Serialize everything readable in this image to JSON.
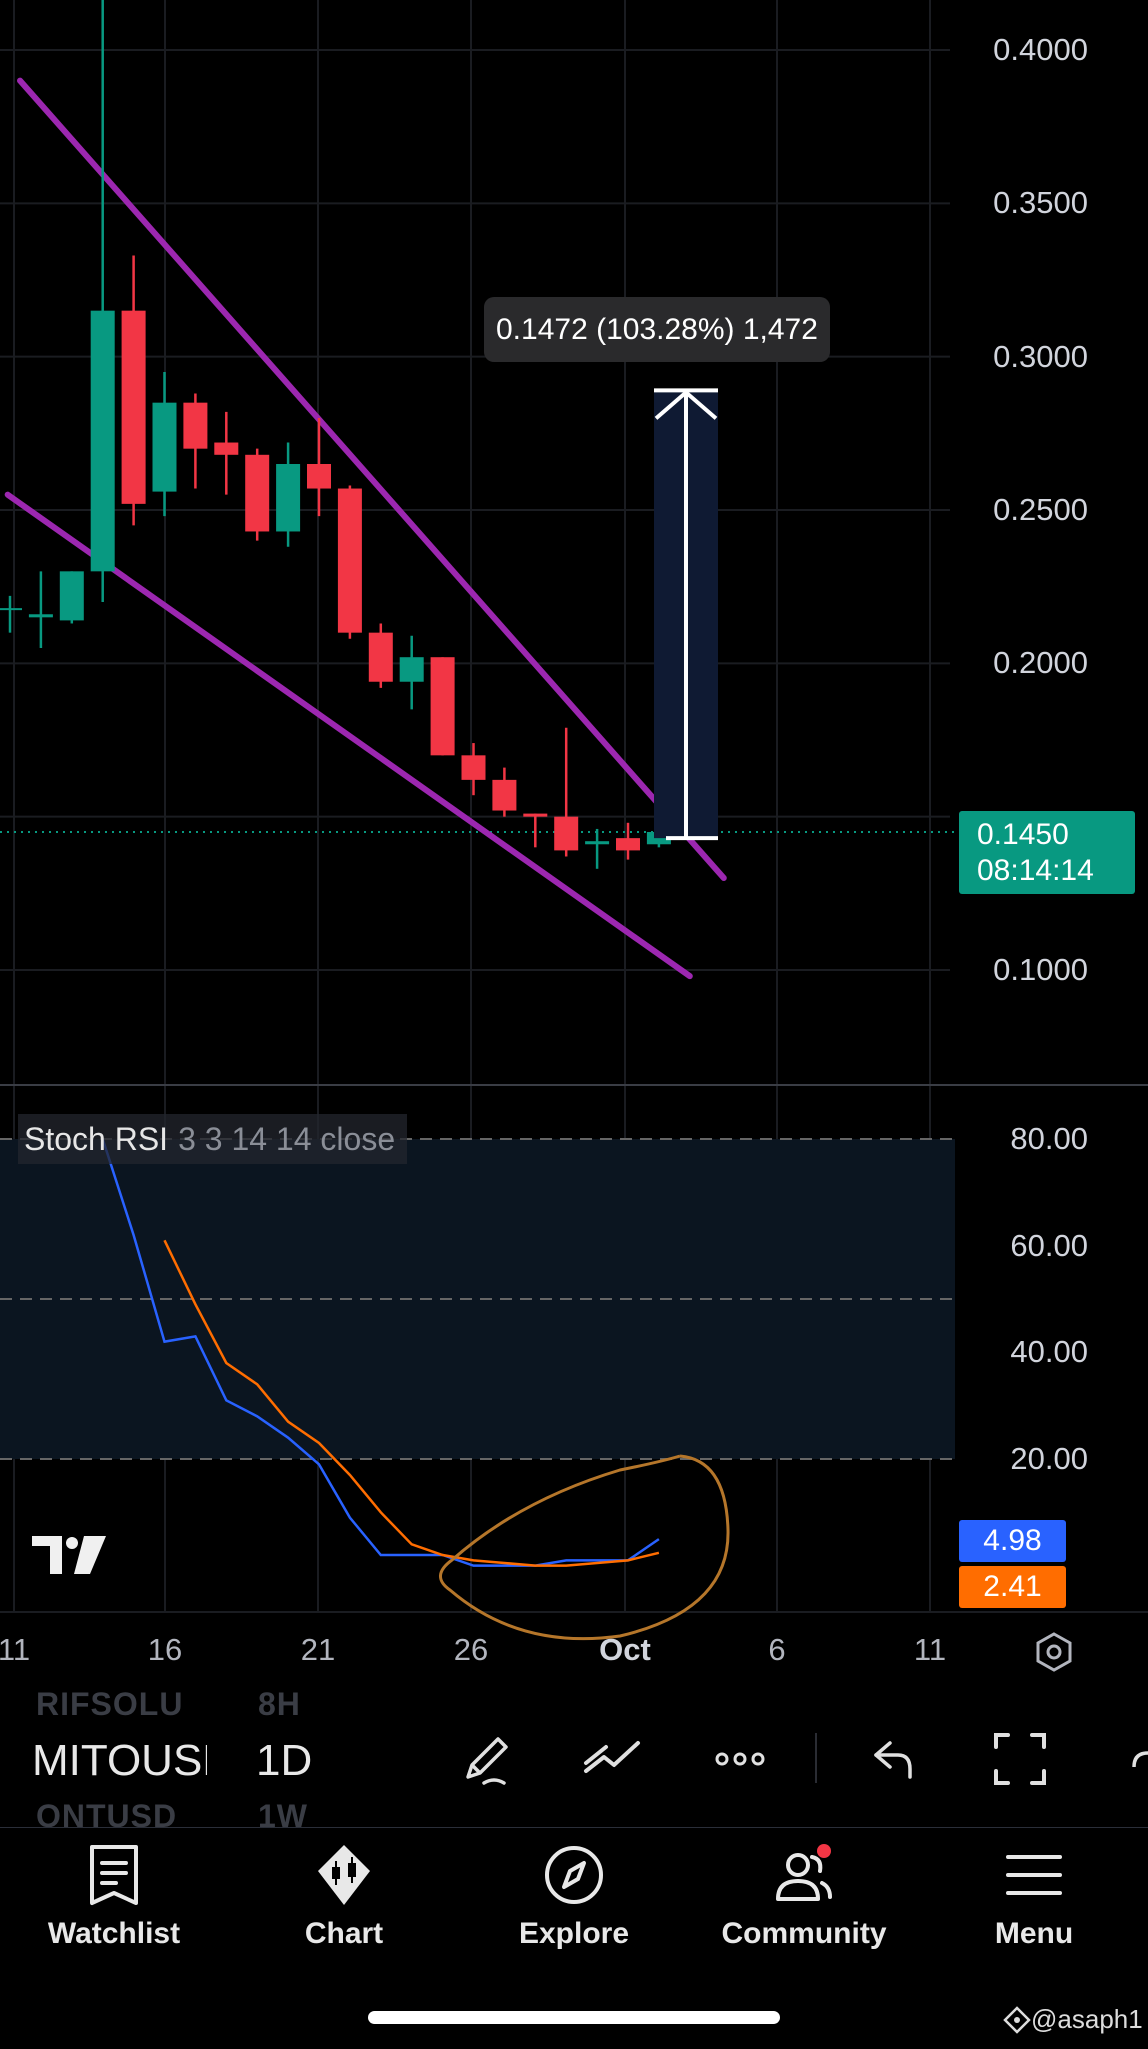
{
  "price_axis": {
    "labels": [
      "0.4000",
      "0.3500",
      "0.3000",
      "0.2500",
      "0.2000",
      "0.1000"
    ]
  },
  "current_price": {
    "price": "0.1450",
    "countdown": "08:14:14"
  },
  "measure": {
    "label": "0.1472 (103.28%) 1,472"
  },
  "indicator": {
    "name": "Stoch RSI",
    "params": "3 3 14 14 close",
    "axis_labels": [
      "80.00",
      "60.00",
      "40.00",
      "20.00"
    ],
    "k_value": "4.98",
    "d_value": "2.41"
  },
  "date_axis": {
    "labels": [
      "11",
      "16",
      "21",
      "26",
      "Oct",
      "6",
      "11"
    ]
  },
  "toolbar": {
    "symbol": "MITOUSD",
    "interval": "1D",
    "ghost_prev_symbol": "RIFSOLU",
    "ghost_prev_interval": "8H",
    "ghost_next_symbol": "ONTUSD",
    "ghost_next_interval": "1W"
  },
  "nav": {
    "items": [
      {
        "label": "Watchlist",
        "icon": "watchlist-icon"
      },
      {
        "label": "Chart",
        "icon": "chart-icon"
      },
      {
        "label": "Explore",
        "icon": "compass-icon"
      },
      {
        "label": "Community",
        "icon": "community-icon"
      },
      {
        "label": "Menu",
        "icon": "menu-icon"
      }
    ]
  },
  "watermark": "@asaph1",
  "colors": {
    "background": "#000000",
    "up": "#089981",
    "down": "#f23645",
    "channel": "#9c27b0",
    "k_line": "#2962ff",
    "d_line": "#ff6d00",
    "annotation": "#b5762a",
    "measure_fill": "#0f1a33"
  },
  "chart_data": [
    {
      "type": "candlestick",
      "title": "",
      "x_labels": [
        "11",
        "16",
        "21",
        "26",
        "Oct",
        "6",
        "11"
      ],
      "ylim": [
        0.075,
        0.425
      ],
      "y_ticks": [
        0.1,
        0.15,
        0.2,
        0.25,
        0.3,
        0.35,
        0.4
      ],
      "grid": true,
      "current_price": 0.145,
      "candles": [
        {
          "i": 0,
          "o": 0.218,
          "h": 0.222,
          "l": 0.21,
          "c": 0.218
        },
        {
          "i": 1,
          "o": 0.215,
          "h": 0.23,
          "l": 0.205,
          "c": 0.216
        },
        {
          "i": 2,
          "o": 0.214,
          "h": 0.23,
          "l": 0.213,
          "c": 0.23
        },
        {
          "i": 3,
          "o": 0.23,
          "h": 0.445,
          "l": 0.22,
          "c": 0.315
        },
        {
          "i": 4,
          "o": 0.315,
          "h": 0.333,
          "l": 0.245,
          "c": 0.252
        },
        {
          "i": 5,
          "o": 0.256,
          "h": 0.295,
          "l": 0.248,
          "c": 0.285
        },
        {
          "i": 6,
          "o": 0.285,
          "h": 0.288,
          "l": 0.257,
          "c": 0.27
        },
        {
          "i": 7,
          "o": 0.272,
          "h": 0.282,
          "l": 0.255,
          "c": 0.268
        },
        {
          "i": 8,
          "o": 0.268,
          "h": 0.27,
          "l": 0.24,
          "c": 0.243
        },
        {
          "i": 9,
          "o": 0.243,
          "h": 0.272,
          "l": 0.238,
          "c": 0.265
        },
        {
          "i": 10,
          "o": 0.265,
          "h": 0.28,
          "l": 0.248,
          "c": 0.257
        },
        {
          "i": 11,
          "o": 0.257,
          "h": 0.258,
          "l": 0.208,
          "c": 0.21
        },
        {
          "i": 12,
          "o": 0.21,
          "h": 0.213,
          "l": 0.192,
          "c": 0.194
        },
        {
          "i": 13,
          "o": 0.194,
          "h": 0.209,
          "l": 0.185,
          "c": 0.202
        },
        {
          "i": 14,
          "o": 0.202,
          "h": 0.202,
          "l": 0.17,
          "c": 0.17
        },
        {
          "i": 15,
          "o": 0.17,
          "h": 0.174,
          "l": 0.157,
          "c": 0.162
        },
        {
          "i": 16,
          "o": 0.162,
          "h": 0.166,
          "l": 0.15,
          "c": 0.152
        },
        {
          "i": 17,
          "o": 0.151,
          "h": 0.151,
          "l": 0.14,
          "c": 0.15
        },
        {
          "i": 18,
          "o": 0.15,
          "h": 0.179,
          "l": 0.137,
          "c": 0.139
        },
        {
          "i": 19,
          "o": 0.141,
          "h": 0.146,
          "l": 0.133,
          "c": 0.142
        },
        {
          "i": 20,
          "o": 0.143,
          "h": 0.148,
          "l": 0.136,
          "c": 0.139
        },
        {
          "i": 21,
          "o": 0.141,
          "h": 0.15,
          "l": 0.14,
          "c": 0.145
        }
      ],
      "channel_lines": [
        {
          "from": {
            "i": -3.3,
            "y": 0.39
          },
          "to": {
            "i": 23.1,
            "y": 0.13
          }
        },
        {
          "from": {
            "i": -3.7,
            "y": 0.255
          },
          "to": {
            "i": 22.0,
            "y": 0.098
          }
        }
      ],
      "measure": {
        "from": 0.143,
        "to": 0.289,
        "change": 0.1472,
        "percent": 103.28
      }
    },
    {
      "type": "line",
      "title": "Stoch RSI",
      "ylim": [
        0,
        80
      ],
      "y_ticks": [
        20,
        40,
        60,
        80
      ],
      "series": [
        {
          "name": "K",
          "x": [
            3,
            4,
            5,
            6,
            7,
            8,
            9,
            10,
            11,
            12,
            13,
            14,
            15,
            16,
            17,
            18,
            19,
            20,
            21
          ],
          "values": [
            80,
            62,
            42,
            43,
            31,
            28,
            24,
            19,
            9,
            2,
            2,
            2,
            0,
            0,
            0,
            1,
            1,
            1,
            4.98
          ]
        },
        {
          "name": "D",
          "x": [
            5,
            6,
            7,
            8,
            9,
            10,
            11,
            12,
            13,
            14,
            15,
            16,
            17,
            18,
            19,
            20,
            21
          ],
          "values": [
            61,
            49,
            38,
            34,
            27,
            23,
            17,
            10,
            4,
            2,
            1,
            0.5,
            0,
            0,
            0.5,
            1,
            2.41
          ]
        }
      ],
      "overbought": 80,
      "oversold": 20
    }
  ]
}
